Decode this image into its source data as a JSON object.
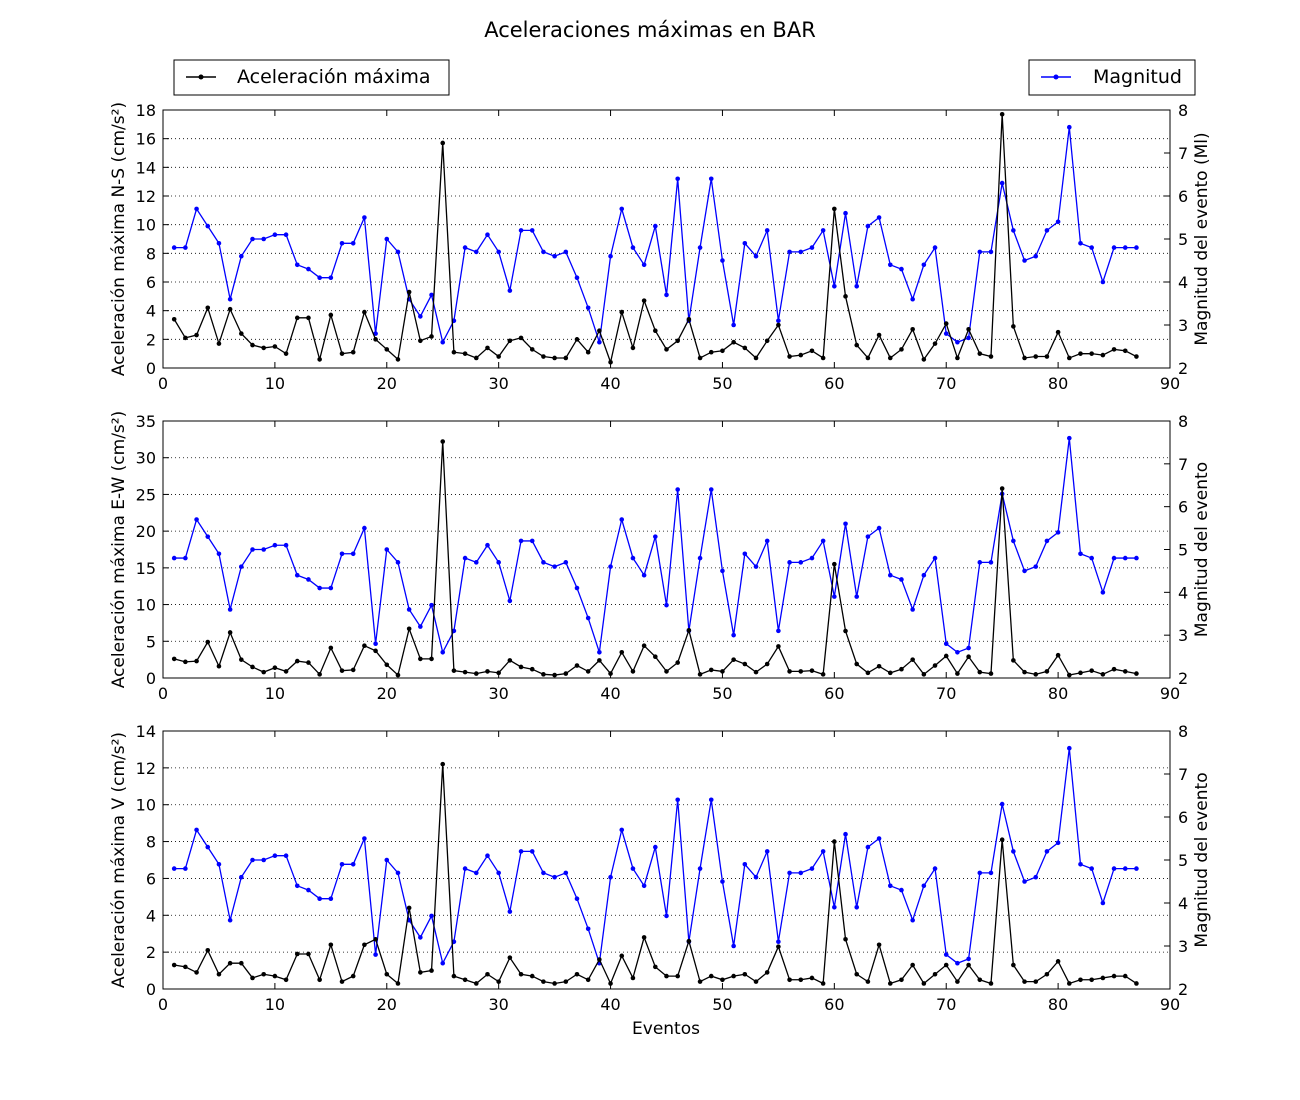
{
  "chart_data": {
    "type": "line",
    "title": "Aceleraciones máximas en BAR",
    "xlabel": "Eventos",
    "legend": {
      "left": "Aceleración máxima",
      "right": "Magnitud"
    },
    "colors": {
      "acc": "#000000",
      "mag": "#0000ff"
    },
    "x": [
      1,
      2,
      3,
      4,
      5,
      6,
      7,
      8,
      9,
      10,
      11,
      12,
      13,
      14,
      15,
      16,
      17,
      18,
      19,
      20,
      21,
      22,
      23,
      24,
      25,
      26,
      27,
      28,
      29,
      30,
      31,
      32,
      33,
      34,
      35,
      36,
      37,
      38,
      39,
      40,
      41,
      42,
      43,
      44,
      45,
      46,
      47,
      48,
      49,
      50,
      51,
      52,
      53,
      54,
      55,
      56,
      57,
      58,
      59,
      60,
      61,
      62,
      63,
      64,
      65,
      66,
      67,
      68,
      69,
      70,
      71,
      72,
      73,
      74,
      75,
      76,
      77,
      78,
      79,
      80,
      81,
      82,
      83,
      84,
      85,
      86,
      87
    ],
    "xlim": [
      0,
      90
    ],
    "xticks": [
      0,
      10,
      20,
      30,
      40,
      50,
      60,
      70,
      80,
      90
    ],
    "magnitude": {
      "name": "Magnitud",
      "values": [
        4.8,
        4.8,
        5.7,
        5.3,
        4.9,
        3.6,
        4.6,
        5,
        5,
        5.1,
        5.1,
        4.4,
        4.3,
        4.1,
        4.1,
        4.9,
        4.9,
        5.5,
        2.8,
        5,
        4.7,
        3.6,
        3.2,
        3.7,
        2.6,
        3.1,
        4.8,
        4.7,
        5.1,
        4.7,
        3.8,
        5.2,
        5.2,
        4.7,
        4.6,
        4.7,
        4.1,
        3.4,
        2.6,
        4.6,
        5.7,
        4.8,
        4.4,
        5.3,
        3.7,
        6.4,
        3.1,
        4.8,
        6.4,
        4.5,
        3,
        4.9,
        4.6,
        5.2,
        3.1,
        4.7,
        4.7,
        4.8,
        5.2,
        3.9,
        5.6,
        3.9,
        5.3,
        5.5,
        4.4,
        4.3,
        3.6,
        4.4,
        4.8,
        2.8,
        2.6,
        2.7,
        4.7,
        4.7,
        6.3,
        5.2,
        4.5,
        4.6,
        5.2,
        5.4,
        7.6,
        4.9,
        4.8,
        4,
        4.8,
        4.8,
        4.8
      ]
    },
    "panels": [
      {
        "ylabel": "Aceleración máxima N-S (cm/s²)",
        "ylabel_right": "Magnitud del evento (Ml)",
        "ylim": [
          0,
          18
        ],
        "yticks": [
          0,
          2,
          4,
          6,
          8,
          10,
          12,
          14,
          16,
          18
        ],
        "values": [
          3.4,
          2.1,
          2.3,
          4.2,
          1.7,
          4.1,
          2.4,
          1.6,
          1.4,
          1.5,
          1,
          3.5,
          3.5,
          0.6,
          3.7,
          1,
          1.1,
          3.9,
          2,
          1.3,
          0.6,
          5.3,
          1.9,
          2.2,
          15.7,
          1.1,
          1,
          0.7,
          1.4,
          0.8,
          1.9,
          2.1,
          1.3,
          0.8,
          0.7,
          0.7,
          2,
          1.1,
          2.6,
          0.4,
          3.9,
          1.4,
          4.7,
          2.6,
          1.3,
          1.9,
          3.4,
          0.7,
          1.1,
          1.2,
          1.8,
          1.4,
          0.7,
          1.9,
          3,
          0.8,
          0.9,
          1.2,
          0.7,
          11.1,
          5,
          1.6,
          0.7,
          2.3,
          0.7,
          1.3,
          2.7,
          0.6,
          1.7,
          3.1,
          0.7,
          2.7,
          1,
          0.8,
          17.7,
          2.9,
          0.7,
          0.8,
          0.8,
          2.5,
          0.7,
          1,
          1,
          0.9,
          1.3,
          1.2,
          0.8
        ]
      },
      {
        "ylabel": "Aceleración máxima E-W (cm/s²)",
        "ylabel_right": "Magnitud del evento",
        "ylim": [
          0,
          35
        ],
        "yticks": [
          0,
          5,
          10,
          15,
          20,
          25,
          30,
          35
        ],
        "values": [
          2.6,
          2.2,
          2.3,
          4.9,
          1.6,
          6.2,
          2.5,
          1.5,
          0.8,
          1.4,
          0.9,
          2.3,
          2.1,
          0.5,
          4.1,
          1,
          1.1,
          4.4,
          3.7,
          1.8,
          0.4,
          6.7,
          2.6,
          2.6,
          32.2,
          1,
          0.8,
          0.6,
          0.9,
          0.7,
          2.4,
          1.5,
          1.2,
          0.5,
          0.4,
          0.6,
          1.7,
          0.9,
          2.4,
          0.6,
          3.5,
          0.9,
          4.4,
          2.9,
          0.9,
          2.1,
          6.5,
          0.5,
          1.1,
          0.9,
          2.5,
          1.9,
          0.8,
          1.9,
          4.3,
          0.9,
          0.9,
          1,
          0.5,
          15.5,
          6.4,
          1.9,
          0.7,
          1.6,
          0.7,
          1.2,
          2.5,
          0.5,
          1.7,
          3,
          0.6,
          2.9,
          0.8,
          0.6,
          25.8,
          2.4,
          0.8,
          0.5,
          0.9,
          3.1,
          0.4,
          0.7,
          1,
          0.5,
          1.2,
          0.9,
          0.6
        ]
      },
      {
        "ylabel": "Aceleración máxima V (cm/s²)",
        "ylabel_right": "Magnitud del evento",
        "ylim": [
          0,
          14
        ],
        "yticks": [
          0,
          2,
          4,
          6,
          8,
          10,
          12,
          14
        ],
        "values": [
          1.3,
          1.2,
          0.9,
          2.1,
          0.8,
          1.4,
          1.4,
          0.6,
          0.8,
          0.7,
          0.5,
          1.9,
          1.9,
          0.5,
          2.4,
          0.4,
          0.7,
          2.4,
          2.7,
          0.8,
          0.3,
          4.4,
          0.9,
          1,
          12.2,
          0.7,
          0.5,
          0.3,
          0.8,
          0.4,
          1.7,
          0.8,
          0.7,
          0.4,
          0.3,
          0.4,
          0.8,
          0.5,
          1.6,
          0.3,
          1.8,
          0.6,
          2.8,
          1.2,
          0.7,
          0.7,
          2.6,
          0.4,
          0.7,
          0.5,
          0.7,
          0.8,
          0.4,
          0.9,
          2.3,
          0.5,
          0.5,
          0.6,
          0.3,
          8,
          2.7,
          0.8,
          0.4,
          2.4,
          0.3,
          0.5,
          1.3,
          0.3,
          0.8,
          1.3,
          0.4,
          1.3,
          0.5,
          0.3,
          8.1,
          1.3,
          0.4,
          0.4,
          0.8,
          1.5,
          0.3,
          0.5,
          0.5,
          0.6,
          0.7,
          0.7,
          0.3
        ]
      }
    ],
    "mag_ylim": [
      2,
      8
    ],
    "mag_yticks": [
      2,
      3,
      4,
      5,
      6,
      7,
      8
    ],
    "grid": "horizontal dotted"
  }
}
